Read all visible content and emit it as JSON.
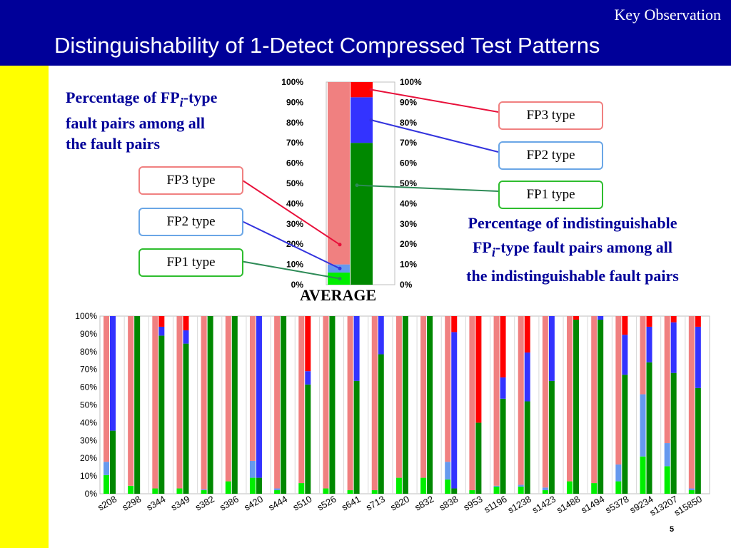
{
  "header": {
    "kicker": "Key Observation",
    "title": "Distinguishability of 1-Detect Compressed Test Patterns"
  },
  "left_text": {
    "line1_pre": "Percentage of FP",
    "line1_sub": "i",
    "line1_post": "-type",
    "line2": "fault pairs among all",
    "line3": "the fault pairs"
  },
  "right_text": {
    "line1": "Percentage of indistinguishable",
    "line2_pre": "FP",
    "line2_sub": "i",
    "line2_post": "-type fault pairs among all",
    "line3": "the indistinguishable fault pairs"
  },
  "legend_left": {
    "fp3": "FP3 type",
    "fp2": "FP2 type",
    "fp1": "FP1 type"
  },
  "legend_right": {
    "fp3": "FP3 type",
    "fp2": "FP2 type",
    "fp1": "FP1 type"
  },
  "colors": {
    "fp1_all": "#00ee00",
    "fp2_all": "#6699ee",
    "fp3_all": "#f08080",
    "fp1_indist": "#008800",
    "fp2_indist": "#3333ff",
    "fp3_indist": "#ff0000",
    "header_bg": "#000099",
    "sidebar": "#ffff00",
    "accent_text": "#000099"
  },
  "page_number": "5",
  "chart_data": [
    {
      "type": "bar",
      "stacked": true,
      "category": "AVERAGE",
      "ylim": [
        0,
        100
      ],
      "yticks": [
        "0%",
        "10%",
        "20%",
        "30%",
        "40%",
        "50%",
        "60%",
        "70%",
        "80%",
        "90%",
        "100%"
      ],
      "series_all": [
        {
          "name": "FP1 type",
          "value": 6
        },
        {
          "name": "FP2 type",
          "value": 4
        },
        {
          "name": "FP3 type",
          "value": 90
        }
      ],
      "series_indistinguishable": [
        {
          "name": "FP1 type",
          "value": 70
        },
        {
          "name": "FP2 type",
          "value": 22.5
        },
        {
          "name": "FP3 type",
          "value": 7.5
        }
      ]
    },
    {
      "type": "bar",
      "stacked": true,
      "ylim": [
        0,
        100
      ],
      "yticks": [
        "0%",
        "10%",
        "20%",
        "30%",
        "40%",
        "50%",
        "60%",
        "70%",
        "80%",
        "90%",
        "100%"
      ],
      "categories": [
        "s208",
        "s298",
        "s344",
        "s349",
        "s382",
        "s386",
        "s420",
        "s444",
        "s510",
        "s526",
        "s641",
        "s713",
        "s820",
        "s832",
        "s838",
        "s953",
        "s1196",
        "s1238",
        "s1423",
        "s1488",
        "s1494",
        "s5378",
        "s9234",
        "s13207",
        "s15850"
      ],
      "all_fp1": [
        10.5,
        4.5,
        3,
        3,
        2,
        7,
        9,
        2,
        6,
        3,
        2,
        2,
        9,
        9,
        8,
        2,
        4,
        4,
        2,
        7,
        6,
        7,
        21,
        15.5,
        2
      ],
      "all_fp2": [
        7.5,
        0,
        0,
        0,
        0.5,
        0,
        9.5,
        1,
        0,
        0,
        0,
        0,
        0,
        0,
        10,
        0,
        0.5,
        1,
        1.5,
        0,
        0,
        9.5,
        35,
        13,
        1
      ],
      "indist_fp1": [
        35.5,
        100,
        89,
        84.5,
        100,
        100,
        9,
        100,
        61.5,
        100,
        63.5,
        78.5,
        100,
        100,
        3,
        40,
        53.5,
        52,
        63.5,
        98,
        98,
        67,
        74,
        68,
        59.5
      ],
      "indist_fp2": [
        64.5,
        0,
        5,
        7.5,
        0,
        0,
        91,
        0,
        7.5,
        0,
        36.5,
        21.5,
        0,
        0,
        88,
        0,
        12,
        27.5,
        36.5,
        0,
        2,
        22.5,
        20,
        28.5,
        34.5
      ]
    }
  ]
}
